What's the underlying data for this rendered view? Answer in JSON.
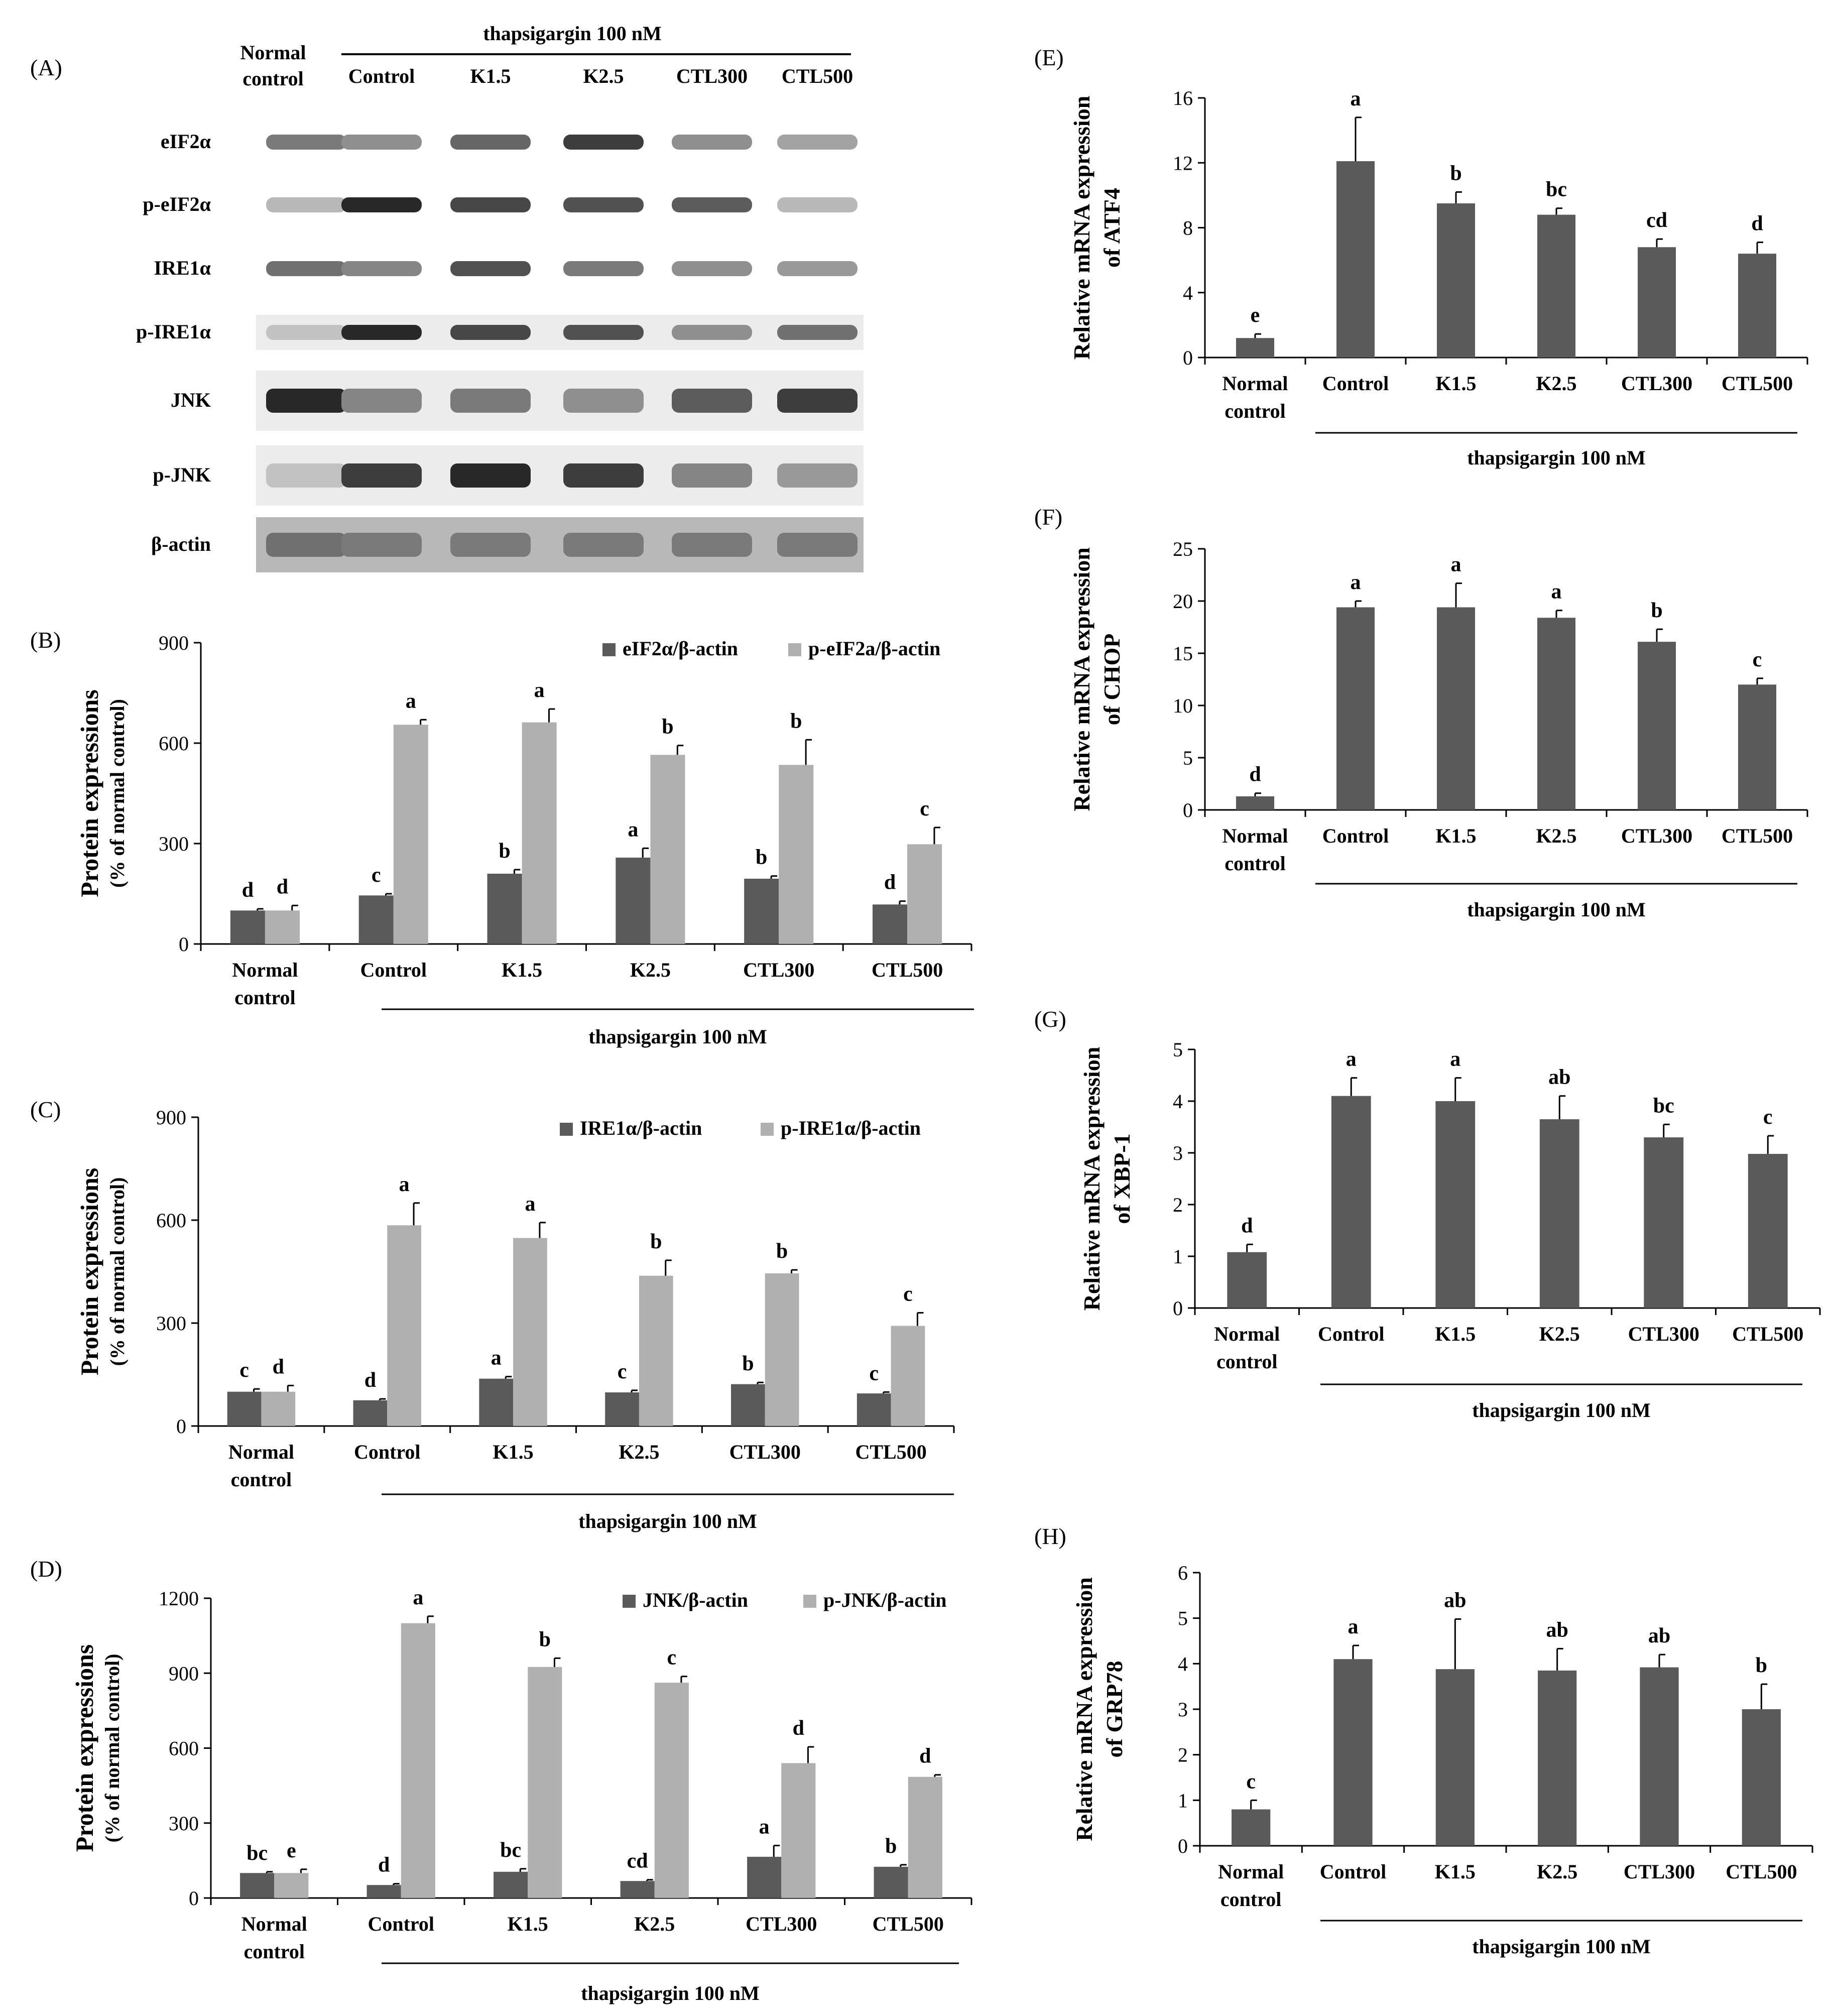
{
  "colors": {
    "dark": "#5a5a5a",
    "light": "#b0b0b0",
    "line": "#000000",
    "blot_bg": "#ececec"
  },
  "common": {
    "treatment": "thapsigargin 100 nM",
    "normal_line1": "Normal",
    "normal_line2": "control",
    "ylabel_protein": "Protein expressions",
    "ylabel_protein_sub": "(% of normal control)",
    "ylabel_mrna_line1": "Relative mRNA expression"
  },
  "blot": {
    "panel_label": "(A)",
    "header_treatment": "thapsigargin 100 nM",
    "normal_line1": "Normal",
    "normal_line2": "control",
    "lanes": [
      "Control",
      "K1.5",
      "K2.5",
      "CTL300",
      "CTL500"
    ],
    "rows": [
      "eIF2α",
      "p-eIF2α",
      "IRE1α",
      "p-IRE1α",
      "JNK",
      "p-JNK",
      "β-actin"
    ],
    "intensity": [
      [
        0.55,
        0.45,
        0.65,
        0.85,
        0.45,
        0.35
      ],
      [
        0.25,
        0.95,
        0.8,
        0.75,
        0.7,
        0.25
      ],
      [
        0.6,
        0.5,
        0.75,
        0.55,
        0.45,
        0.4
      ],
      [
        0.2,
        0.95,
        0.8,
        0.75,
        0.45,
        0.6
      ],
      [
        0.95,
        0.5,
        0.55,
        0.45,
        0.7,
        0.85
      ],
      [
        0.2,
        0.85,
        0.95,
        0.85,
        0.5,
        0.4
      ],
      [
        0.6,
        0.55,
        0.55,
        0.55,
        0.55,
        0.55
      ]
    ]
  },
  "chart_data": [
    {
      "panel": "(B)",
      "type": "bar",
      "ylabel": "Protein expressions",
      "ylabel_sub": "(% of normal control)",
      "ylim": [
        0,
        900
      ],
      "yticks": [
        0,
        300,
        600,
        900
      ],
      "categories": [
        "Normal control",
        "Control",
        "K1.5",
        "K2.5",
        "CTL300",
        "CTL500"
      ],
      "treatment_label": "thapsigargin 100 nM",
      "series": [
        {
          "name": "eIF2α/β-actin",
          "values": [
            100,
            145,
            210,
            258,
            195,
            118
          ],
          "errors": [
            5,
            5,
            12,
            28,
            8,
            10
          ],
          "letters": [
            "d",
            "c",
            "b",
            "a",
            "b",
            "d"
          ]
        },
        {
          "name": "p-eIF2a/β-actin",
          "values": [
            100,
            655,
            662,
            565,
            535,
            298
          ],
          "errors": [
            15,
            15,
            40,
            28,
            75,
            50
          ],
          "letters": [
            "d",
            "a",
            "a",
            "b",
            "b",
            "c"
          ]
        }
      ]
    },
    {
      "panel": "(C)",
      "type": "bar",
      "ylabel": "Protein expressions",
      "ylabel_sub": "(% of normal control)",
      "ylim": [
        0,
        900
      ],
      "yticks": [
        0,
        300,
        600,
        900
      ],
      "categories": [
        "Normal control",
        "Control",
        "K1.5",
        "K2.5",
        "CTL300",
        "CTL500"
      ],
      "treatment_label": "thapsigargin 100 nM",
      "series": [
        {
          "name": "IRE1α/β-actin",
          "values": [
            100,
            75,
            138,
            98,
            122,
            95
          ],
          "errors": [
            8,
            4,
            6,
            6,
            5,
            4
          ],
          "letters": [
            "c",
            "d",
            "a",
            "c",
            "b",
            "c"
          ]
        },
        {
          "name": "p-IRE1α/β-actin",
          "values": [
            100,
            585,
            548,
            438,
            445,
            292
          ],
          "errors": [
            18,
            65,
            45,
            45,
            10,
            38
          ],
          "letters": [
            "d",
            "a",
            "a",
            "b",
            "b",
            "c"
          ]
        }
      ]
    },
    {
      "panel": "(D)",
      "type": "bar",
      "ylabel": "Protein expressions",
      "ylabel_sub": "(% of normal control)",
      "ylim": [
        0,
        1200
      ],
      "yticks": [
        0,
        300,
        600,
        900,
        1200
      ],
      "categories": [
        "Normal control",
        "Control",
        "K1.5",
        "K2.5",
        "CTL300",
        "CTL500"
      ],
      "treatment_label": "thapsigargin 100 nM",
      "series": [
        {
          "name": "JNK/β-actin",
          "values": [
            100,
            52,
            105,
            68,
            165,
            125
          ],
          "errors": [
            5,
            5,
            12,
            5,
            45,
            8
          ],
          "letters": [
            "bc",
            "d",
            "bc",
            "cd",
            "a",
            "b"
          ]
        },
        {
          "name": "p-JNK/β-actin",
          "values": [
            100,
            1100,
            925,
            862,
            540,
            485
          ],
          "errors": [
            15,
            28,
            35,
            25,
            65,
            8
          ],
          "letters": [
            "e",
            "a",
            "b",
            "c",
            "d",
            "d"
          ]
        }
      ]
    },
    {
      "panel": "(E)",
      "type": "bar",
      "ylabel": "Relative mRNA expression",
      "ylabel_sub": "of ATF4",
      "ylim": [
        0,
        16
      ],
      "yticks": [
        0,
        4,
        8,
        12,
        16
      ],
      "categories": [
        "Normal control",
        "Control",
        "K1.5",
        "K2.5",
        "CTL300",
        "CTL500"
      ],
      "treatment_label": "thapsigargin 100 nM",
      "series": [
        {
          "name": "ATF4",
          "values": [
            1.2,
            12.1,
            9.5,
            8.8,
            6.8,
            6.4
          ],
          "errors": [
            0.25,
            2.7,
            0.7,
            0.4,
            0.5,
            0.7
          ],
          "letters": [
            "e",
            "a",
            "b",
            "bc",
            "cd",
            "d"
          ]
        }
      ]
    },
    {
      "panel": "(F)",
      "type": "bar",
      "ylabel": "Relative mRNA expression",
      "ylabel_sub": "of CHOP",
      "ylim": [
        0,
        25
      ],
      "yticks": [
        0,
        5,
        10,
        15,
        20,
        25
      ],
      "categories": [
        "Normal control",
        "Control",
        "K1.5",
        "K2.5",
        "CTL300",
        "CTL500"
      ],
      "treatment_label": "thapsigargin 100 nM",
      "series": [
        {
          "name": "CHOP",
          "values": [
            1.3,
            19.4,
            19.4,
            18.4,
            16.1,
            12.0
          ],
          "errors": [
            0.3,
            0.6,
            2.3,
            0.7,
            1.2,
            0.6
          ],
          "letters": [
            "d",
            "a",
            "a",
            "a",
            "b",
            "c"
          ]
        }
      ]
    },
    {
      "panel": "(G)",
      "type": "bar",
      "ylabel": "Relative mRNA expression",
      "ylabel_sub": "of XBP-1",
      "ylim": [
        0,
        5
      ],
      "yticks": [
        0,
        1,
        2,
        3,
        4,
        5
      ],
      "categories": [
        "Normal control",
        "Control",
        "K1.5",
        "K2.5",
        "CTL300",
        "CTL500"
      ],
      "treatment_label": "thapsigargin 100 nM",
      "series": [
        {
          "name": "XBP-1",
          "values": [
            1.08,
            4.1,
            4.0,
            3.65,
            3.3,
            2.98
          ],
          "errors": [
            0.15,
            0.35,
            0.45,
            0.45,
            0.25,
            0.35
          ],
          "letters": [
            "d",
            "a",
            "a",
            "ab",
            "bc",
            "c"
          ]
        }
      ]
    },
    {
      "panel": "(H)",
      "type": "bar",
      "ylabel": "Relative mRNA expression",
      "ylabel_sub": "of GRP78",
      "ylim": [
        0,
        6
      ],
      "yticks": [
        0,
        1,
        2,
        3,
        4,
        5,
        6
      ],
      "categories": [
        "Normal control",
        "Control",
        "K1.5",
        "K2.5",
        "CTL300",
        "CTL500"
      ],
      "treatment_label": "thapsigargin 100 nM",
      "series": [
        {
          "name": "GRP78",
          "values": [
            0.8,
            4.1,
            3.88,
            3.85,
            3.92,
            3.0
          ],
          "errors": [
            0.2,
            0.3,
            1.1,
            0.48,
            0.28,
            0.55
          ],
          "letters": [
            "c",
            "a",
            "ab",
            "ab",
            "ab",
            "b"
          ]
        }
      ]
    }
  ]
}
